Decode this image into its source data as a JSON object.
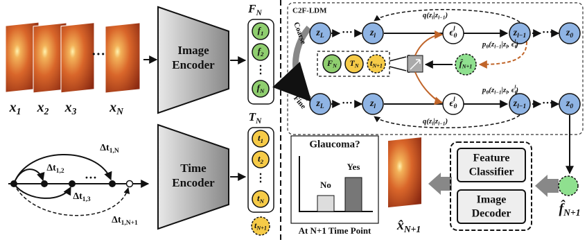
{
  "inputs": {
    "ellipsis": "···",
    "labels": [
      [
        "x",
        {
          "sub": "1"
        }
      ],
      [
        "x",
        {
          "sub": "2"
        }
      ],
      [
        "x",
        {
          "sub": "3"
        }
      ],
      [
        "x",
        {
          "sub": "N"
        }
      ]
    ]
  },
  "image_encoder": [
    "Image",
    "Encoder"
  ],
  "time_encoder": [
    "Time",
    "Encoder"
  ],
  "features": {
    "title": [
      "F",
      {
        "sub": "N"
      }
    ],
    "items": [
      [
        "f",
        {
          "sub": "1"
        }
      ],
      [
        "f",
        {
          "sub": "2"
        }
      ],
      [
        "f",
        {
          "sub": "N"
        }
      ]
    ],
    "ellipsis": "⋮"
  },
  "times": {
    "title": [
      "T",
      {
        "sub": "N"
      }
    ],
    "items": [
      [
        "t",
        {
          "sub": "1"
        }
      ],
      [
        "t",
        {
          "sub": "2"
        }
      ],
      [
        "t",
        {
          "sub": "N"
        }
      ]
    ],
    "next": [
      "t",
      {
        "sub": "N+1"
      }
    ],
    "ellipsis": "⋮"
  },
  "timeline": {
    "ellipsis": "···",
    "intervals": [
      [
        "Δt",
        {
          "sub": "1,2"
        }
      ],
      [
        "Δt",
        {
          "sub": "1,3"
        }
      ],
      [
        "Δt",
        {
          "sub": "1,N"
        }
      ],
      [
        "Δt",
        {
          "sub": "1,N+1"
        }
      ]
    ]
  },
  "c2f_ldm": {
    "title": "C2F-LDM",
    "coarse": "Coarse",
    "fine": "Fine",
    "top": {
      "nodes": [
        [
          "z",
          {
            "sub": "L"
          }
        ],
        "···",
        [
          "z",
          {
            "sub": "l"
          }
        ],
        [
          "ϵ",
          {
            "sub": "θ"
          },
          {
            "sup": "l"
          }
        ],
        [
          "z",
          {
            "sub": "l−1"
          }
        ],
        "···",
        [
          "z",
          {
            "sub": "0"
          }
        ]
      ],
      "q": [
        "q(z",
        {
          "sub": "l"
        },
        "|z",
        {
          "sub": "l−1"
        },
        ")"
      ],
      "p": [
        "p",
        {
          "sub": "θ"
        },
        "(z",
        {
          "sub": "l−1"
        },
        "|z",
        {
          "sub": "l"
        },
        ", ϵ",
        {
          "sub": "θ"
        },
        {
          "sup": "l"
        },
        ")"
      ]
    },
    "bottom": {
      "nodes": [
        [
          "z",
          {
            "sub": "L"
          }
        ],
        "···",
        [
          "z",
          {
            "sub": "l"
          }
        ],
        [
          "ϵ",
          {
            "sub": "θ"
          },
          {
            "sup": "l"
          }
        ],
        [
          "z",
          {
            "sub": "l−1"
          }
        ],
        "···",
        [
          "z",
          {
            "sub": "0"
          }
        ]
      ],
      "q": [
        "q(z",
        {
          "sub": "l"
        },
        "|z",
        {
          "sub": "l−1"
        },
        ")"
      ],
      "p": [
        "p",
        {
          "sub": "θ"
        },
        "(z",
        {
          "sub": "l−1"
        },
        "|z",
        {
          "sub": "l"
        },
        ", ϵ",
        {
          "sub": "θ"
        },
        {
          "sup": "l"
        },
        ")"
      ]
    },
    "condition": [
      [
        "F",
        {
          "sub": "N"
        }
      ],
      [
        "T",
        {
          "sub": "N"
        }
      ],
      [
        "t",
        {
          "sub": "N+1"
        }
      ]
    ],
    "output": [
      "f̂",
      {
        "sub": "N+1"
      }
    ]
  },
  "classifier": {
    "question": "Glaucoma?",
    "no": "No",
    "yes": "Yes",
    "caption": "At N+1 Time Point"
  },
  "heads": [
    [
      "Feature",
      "Classifier"
    ],
    [
      "Image",
      "Decoder"
    ]
  ],
  "prediction": [
    "x̂",
    {
      "sub": "N+1"
    }
  ],
  "feature": [
    "f̂",
    {
      "sub": "N+1"
    }
  ]
}
